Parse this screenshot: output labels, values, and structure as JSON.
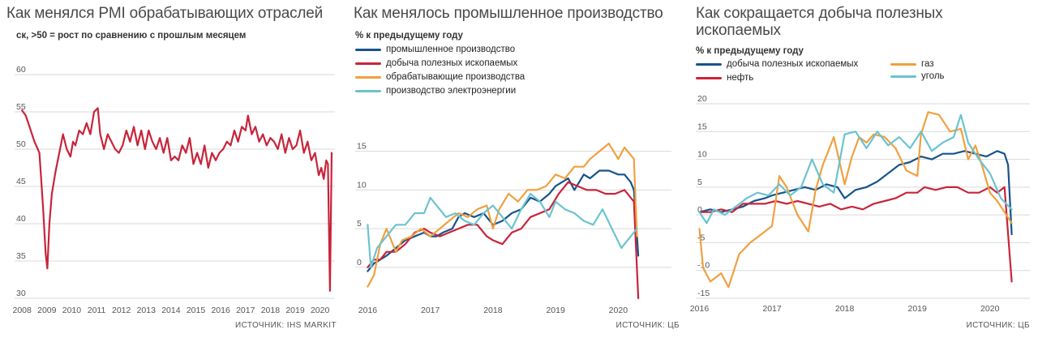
{
  "chart_data": [
    {
      "type": "line",
      "title": "Как менялся PMI обрабатывающих отраслей",
      "subtitle": "ск, >50 = рост по сравнению с прошлым месяцем",
      "source": "ИСТОЧНИК: IHS MARKIT",
      "ylim": [
        30,
        60
      ],
      "yticks": [
        30,
        35,
        40,
        45,
        50,
        55,
        60
      ],
      "xlim": [
        2007.7,
        2020.6
      ],
      "xticks": [
        2008,
        2009,
        2010,
        2011,
        2012,
        2013,
        2014,
        2015,
        2016,
        2017,
        2018,
        2019,
        2020
      ],
      "grid": true,
      "colors": {
        "pmi": "#c8243a"
      },
      "series": [
        {
          "key": "pmi",
          "x": [
            2008.0,
            2008.15,
            2008.3,
            2008.5,
            2008.7,
            2008.85,
            2008.95,
            2009.02,
            2009.1,
            2009.2,
            2009.35,
            2009.5,
            2009.65,
            2009.8,
            2009.95,
            2010.05,
            2010.15,
            2010.3,
            2010.45,
            2010.6,
            2010.75,
            2010.9,
            2011.05,
            2011.15,
            2011.3,
            2011.45,
            2011.6,
            2011.75,
            2011.9,
            2012.05,
            2012.2,
            2012.35,
            2012.5,
            2012.65,
            2012.8,
            2012.95,
            2013.1,
            2013.25,
            2013.4,
            2013.55,
            2013.7,
            2013.85,
            2014.0,
            2014.15,
            2014.3,
            2014.45,
            2014.6,
            2014.75,
            2014.9,
            2015.05,
            2015.2,
            2015.35,
            2015.5,
            2015.65,
            2015.8,
            2015.95,
            2016.1,
            2016.25,
            2016.4,
            2016.55,
            2016.7,
            2016.85,
            2017.0,
            2017.1,
            2017.25,
            2017.4,
            2017.55,
            2017.7,
            2017.85,
            2018.0,
            2018.15,
            2018.3,
            2018.45,
            2018.6,
            2018.75,
            2018.9,
            2019.05,
            2019.2,
            2019.35,
            2019.5,
            2019.65,
            2019.8,
            2019.95,
            2020.05,
            2020.15,
            2020.25,
            2020.32,
            2020.4,
            2020.47
          ],
          "y": [
            55.2,
            54.5,
            53,
            51,
            49.5,
            42,
            36,
            34,
            40,
            44,
            47,
            49.5,
            52,
            50,
            49,
            51,
            50.5,
            52.5,
            52,
            53.5,
            52,
            55,
            55.5,
            52,
            50,
            52,
            51,
            50,
            49.5,
            50.5,
            52.5,
            51,
            53,
            50.5,
            52.5,
            50,
            52.5,
            51,
            50,
            51.5,
            49.5,
            51.5,
            48.5,
            49,
            48.5,
            50.5,
            49.5,
            51.5,
            48,
            49.5,
            48,
            50.5,
            47.5,
            49.5,
            48.5,
            49.5,
            50,
            51,
            50.5,
            52.5,
            51,
            53,
            52.5,
            54.5,
            52,
            53,
            51,
            52,
            50.5,
            51.5,
            51,
            50,
            52,
            49.5,
            51.5,
            50,
            50.5,
            52.5,
            49.5,
            51,
            48.5,
            49.5,
            46.5,
            47.5,
            46,
            48.5,
            48,
            31,
            49.5
          ]
        }
      ]
    },
    {
      "type": "line",
      "title": "Как менялось промышленное производство",
      "subtitle": "% к предыдущему году",
      "source": "ИСТОЧНИК: ЦБ",
      "ylim": [
        -4,
        18
      ],
      "yticks": [
        0,
        5,
        10,
        15
      ],
      "xlim": [
        2015.8,
        2020.85
      ],
      "xticks": [
        2016,
        2017,
        2018,
        2019,
        2020
      ],
      "grid": true,
      "legend_placement": "top-left",
      "series": [
        {
          "name": "промышленное производство",
          "color": "#17538b",
          "x": [
            2016.0,
            2016.1,
            2016.2,
            2016.3,
            2016.45,
            2016.6,
            2016.75,
            2016.9,
            2017.0,
            2017.1,
            2017.2,
            2017.35,
            2017.45,
            2017.55,
            2017.7,
            2017.85,
            2018.0,
            2018.15,
            2018.3,
            2018.45,
            2018.6,
            2018.75,
            2018.9,
            2019.0,
            2019.1,
            2019.2,
            2019.3,
            2019.45,
            2019.55,
            2019.7,
            2019.85,
            2020.0,
            2020.1,
            2020.2,
            2020.25,
            2020.32
          ],
          "y": [
            -0.5,
            0.5,
            1,
            1.5,
            2.5,
            3.5,
            4,
            4.5,
            4,
            4,
            4.5,
            5,
            6.5,
            7,
            6.5,
            7,
            5.5,
            6,
            7,
            7.5,
            9,
            8.5,
            9.5,
            10.5,
            11,
            11.5,
            10,
            12,
            11.5,
            12.5,
            12.5,
            12,
            12,
            11,
            10,
            1.5
          ]
        },
        {
          "name": "добыча полезных ископаемых",
          "color": "#c8243a",
          "x": [
            2016.0,
            2016.1,
            2016.2,
            2016.3,
            2016.45,
            2016.6,
            2016.75,
            2016.9,
            2017.0,
            2017.15,
            2017.3,
            2017.45,
            2017.6,
            2017.75,
            2017.9,
            2018.0,
            2018.15,
            2018.3,
            2018.45,
            2018.6,
            2018.75,
            2018.9,
            2019.05,
            2019.2,
            2019.35,
            2019.5,
            2019.65,
            2019.8,
            2019.95,
            2020.1,
            2020.2,
            2020.25,
            2020.32
          ],
          "y": [
            0,
            1,
            1,
            2,
            2,
            3,
            4.5,
            5,
            4.5,
            4,
            4.5,
            5,
            5.5,
            5.5,
            4,
            3.5,
            3,
            4.5,
            5,
            6.5,
            7,
            7.5,
            9.5,
            11,
            10.5,
            10,
            10,
            9.5,
            9.5,
            10,
            9,
            8.5,
            -4
          ]
        },
        {
          "name": "обрабатывающие производства",
          "color": "#f0a040",
          "x": [
            2016.0,
            2016.1,
            2016.2,
            2016.3,
            2016.45,
            2016.55,
            2016.7,
            2016.85,
            2017.0,
            2017.15,
            2017.3,
            2017.45,
            2017.6,
            2017.75,
            2017.9,
            2018.0,
            2018.1,
            2018.25,
            2018.4,
            2018.55,
            2018.7,
            2018.85,
            2019.0,
            2019.15,
            2019.3,
            2019.45,
            2019.55,
            2019.7,
            2019.85,
            2020.0,
            2020.1,
            2020.15,
            2020.25,
            2020.3
          ],
          "y": [
            -2.5,
            -1,
            3,
            5,
            2,
            3.5,
            4,
            5,
            4,
            5,
            6,
            7,
            6.5,
            7.5,
            8,
            5,
            7.5,
            9.5,
            8.5,
            10,
            10,
            10.5,
            12,
            11.5,
            13,
            13,
            14,
            15,
            16,
            14,
            15.5,
            15,
            14,
            4
          ]
        },
        {
          "name": "производство электроэнергии",
          "color": "#6cc3cf",
          "x": [
            2016.0,
            2016.05,
            2016.15,
            2016.3,
            2016.45,
            2016.6,
            2016.75,
            2016.9,
            2017.0,
            2017.1,
            2017.25,
            2017.4,
            2017.55,
            2017.7,
            2017.85,
            2018.0,
            2018.15,
            2018.3,
            2018.45,
            2018.6,
            2018.75,
            2018.9,
            2019.0,
            2019.15,
            2019.3,
            2019.45,
            2019.6,
            2019.75,
            2019.9,
            2020.05,
            2020.2,
            2020.3
          ],
          "y": [
            5.5,
            0,
            2.5,
            4,
            5.5,
            5.5,
            7,
            7,
            9,
            8,
            6.5,
            7,
            6,
            5.5,
            7,
            8,
            6.5,
            5,
            7.5,
            9.5,
            8.5,
            6.5,
            8.5,
            7.5,
            7,
            6,
            5.5,
            7.5,
            5,
            2.5,
            4,
            5
          ]
        }
      ]
    },
    {
      "type": "line",
      "title": "Как сокращается добыча полезных ископаемых",
      "subtitle": "% к предыдущему году",
      "ylim": [
        -15,
        20
      ],
      "yticks": [
        -15,
        -10,
        -5,
        0,
        5,
        10,
        15,
        20
      ],
      "xlim": [
        2015.95,
        2020.55
      ],
      "xticks": [
        2016,
        2017,
        2018,
        2019,
        2020
      ],
      "grid": true,
      "legend_placement": "top-left",
      "series": [
        {
          "name": "добыча полезных ископаемых",
          "color": "#17538b",
          "x": [
            2016.0,
            2016.15,
            2016.3,
            2016.45,
            2016.6,
            2016.75,
            2016.9,
            2017.0,
            2017.15,
            2017.3,
            2017.45,
            2017.6,
            2017.75,
            2017.9,
            2018.0,
            2018.15,
            2018.3,
            2018.45,
            2018.6,
            2018.75,
            2018.9,
            2019.05,
            2019.2,
            2019.35,
            2019.5,
            2019.65,
            2019.8,
            2019.95,
            2020.1,
            2020.2,
            2020.25,
            2020.3
          ],
          "y": [
            0.5,
            1,
            0.5,
            1,
            1.5,
            2.5,
            3,
            3.5,
            4,
            4.5,
            5,
            4.5,
            5.5,
            5,
            3,
            4.5,
            5,
            6,
            7.5,
            9,
            9.5,
            10.5,
            10,
            11,
            11,
            11.5,
            11,
            10.5,
            11.5,
            11,
            9,
            -3.5
          ]
        },
        {
          "name": "нефть",
          "color": "#c8243a",
          "x": [
            2016.0,
            2016.15,
            2016.3,
            2016.45,
            2016.6,
            2016.75,
            2016.9,
            2017.05,
            2017.2,
            2017.35,
            2017.5,
            2017.65,
            2017.8,
            2017.95,
            2018.1,
            2018.25,
            2018.4,
            2018.55,
            2018.7,
            2018.85,
            2019.0,
            2019.1,
            2019.25,
            2019.4,
            2019.55,
            2019.7,
            2019.85,
            2020.0,
            2020.1,
            2020.2,
            2020.3
          ],
          "y": [
            0.5,
            0.5,
            1,
            0.5,
            2,
            2,
            2,
            2.5,
            2,
            2.5,
            2,
            1.5,
            2,
            1,
            1.5,
            1,
            2,
            2.5,
            3,
            4,
            4,
            5,
            4.5,
            5,
            5,
            4,
            4,
            5,
            4,
            5,
            -12
          ]
        },
        {
          "name": "газ",
          "color": "#f0a040",
          "x": [
            2016.0,
            2016.05,
            2016.15,
            2016.3,
            2016.4,
            2016.55,
            2016.7,
            2016.85,
            2017.0,
            2017.1,
            2017.2,
            2017.35,
            2017.5,
            2017.6,
            2017.7,
            2017.85,
            2018.0,
            2018.1,
            2018.2,
            2018.3,
            2018.4,
            2018.55,
            2018.7,
            2018.85,
            2019.0,
            2019.05,
            2019.15,
            2019.3,
            2019.45,
            2019.6,
            2019.7,
            2019.8,
            2019.9,
            2020.0,
            2020.1,
            2020.2,
            2020.3
          ],
          "y": [
            -2.5,
            -9.5,
            -12,
            -10.5,
            -13,
            -7,
            -5,
            -3.5,
            -2,
            7,
            5,
            0,
            -3,
            4.5,
            9,
            14,
            5.5,
            10.5,
            14,
            13,
            14.5,
            14,
            12,
            8,
            7,
            14.5,
            18.5,
            18,
            15,
            15.5,
            10,
            12.5,
            8.5,
            4,
            2.5,
            0.5,
            -1.5
          ]
        },
        {
          "name": "уголь",
          "color": "#6cc3cf",
          "x": [
            2016.0,
            2016.1,
            2016.2,
            2016.35,
            2016.5,
            2016.65,
            2016.8,
            2016.95,
            2017.1,
            2017.25,
            2017.4,
            2017.55,
            2017.7,
            2017.85,
            2018.0,
            2018.15,
            2018.3,
            2018.45,
            2018.6,
            2018.75,
            2018.9,
            2019.05,
            2019.2,
            2019.35,
            2019.5,
            2019.6,
            2019.7,
            2019.85,
            2020.0,
            2020.15,
            2020.3
          ],
          "y": [
            0.5,
            -1.5,
            1,
            0,
            1.5,
            3,
            4,
            3.5,
            5.5,
            3.5,
            5,
            10,
            5.5,
            4,
            14.5,
            15,
            12,
            15,
            12.5,
            14,
            12,
            15,
            11.5,
            13,
            14,
            18,
            13,
            10,
            7.5,
            3,
            1
          ]
        }
      ]
    }
  ],
  "panel3_source": "ИСТОЧНИК: ЦБ"
}
